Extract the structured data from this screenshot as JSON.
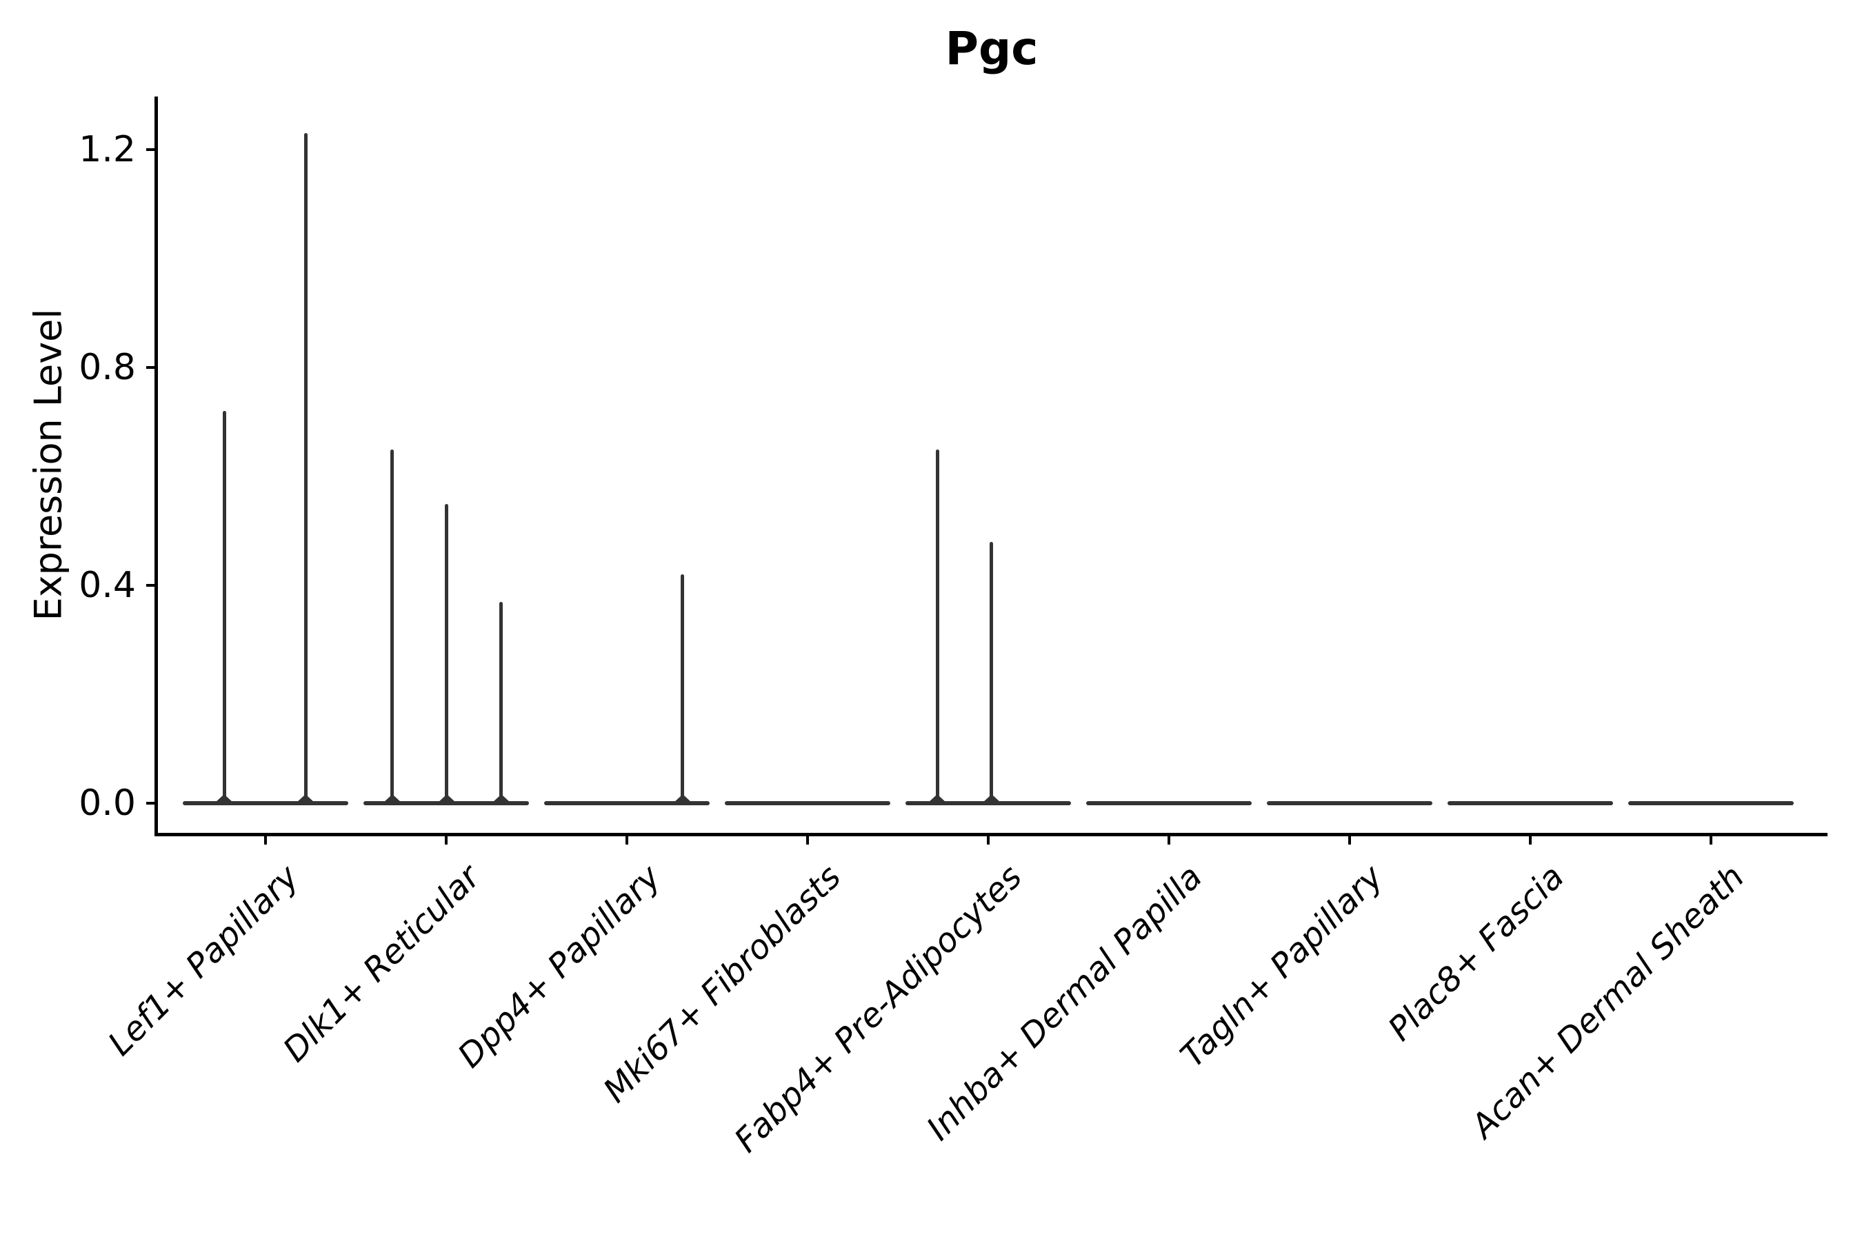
{
  "chart_data": {
    "type": "violin",
    "title": "Pgc",
    "ylabel": "Expression Level",
    "xlabel": "",
    "y_ticks": [
      "0.0",
      "0.4",
      "0.8",
      "1.2"
    ],
    "y_tick_values": [
      0.0,
      0.4,
      0.8,
      1.2
    ],
    "ylim": [
      -0.054,
      1.297
    ],
    "grid": false,
    "legend": "none",
    "x_tick_label_style": "italic, rotated 45 degrees, right-anchored",
    "categories": [
      "Lef1+ Papillary",
      "Dlk1+ Reticular",
      "Dpp4+ Papillary",
      "Mki67+ Fibroblasts",
      "Fabp4+ Pre-Adipocytes",
      "Inhba+ Dermal Papilla",
      "Tagln+ Papillary",
      "Plac8+ Fascia",
      "Acan+ Dermal Sheath"
    ],
    "violins": [
      {
        "category": "Lef1+ Papillary",
        "baseline_value": 0.0,
        "spikes": [
          {
            "offset": -0.228,
            "value": 0.72
          },
          {
            "offset": 0.222,
            "value": 1.23
          }
        ]
      },
      {
        "category": "Dlk1+ Reticular",
        "baseline_value": 0.0,
        "spikes": [
          {
            "offset": -0.298,
            "value": 0.65
          },
          {
            "offset": 0.003,
            "value": 0.55
          },
          {
            "offset": 0.304,
            "value": 0.37
          }
        ]
      },
      {
        "category": "Dpp4+ Papillary",
        "baseline_value": 0.0,
        "spikes": [
          {
            "offset": 0.309,
            "value": 0.42
          }
        ]
      },
      {
        "category": "Mki67+ Fibroblasts",
        "baseline_value": 0.0,
        "spikes": []
      },
      {
        "category": "Fabp4+ Pre-Adipocytes",
        "baseline_value": 0.0,
        "spikes": [
          {
            "offset": -0.282,
            "value": 0.65
          },
          {
            "offset": 0.019,
            "value": 0.48
          }
        ]
      },
      {
        "category": "Inhba+ Dermal Papilla",
        "baseline_value": 0.0,
        "spikes": []
      },
      {
        "category": "Tagln+ Papillary",
        "baseline_value": 0.0,
        "spikes": []
      },
      {
        "category": "Plac8+ Fascia",
        "baseline_value": 0.0,
        "spikes": []
      },
      {
        "category": "Acan+ Dermal Sheath",
        "baseline_value": 0.0,
        "spikes": []
      }
    ],
    "colors": {
      "violin": "#333333",
      "axis": "#000000",
      "text": "#000000",
      "background": "#ffffff"
    }
  }
}
